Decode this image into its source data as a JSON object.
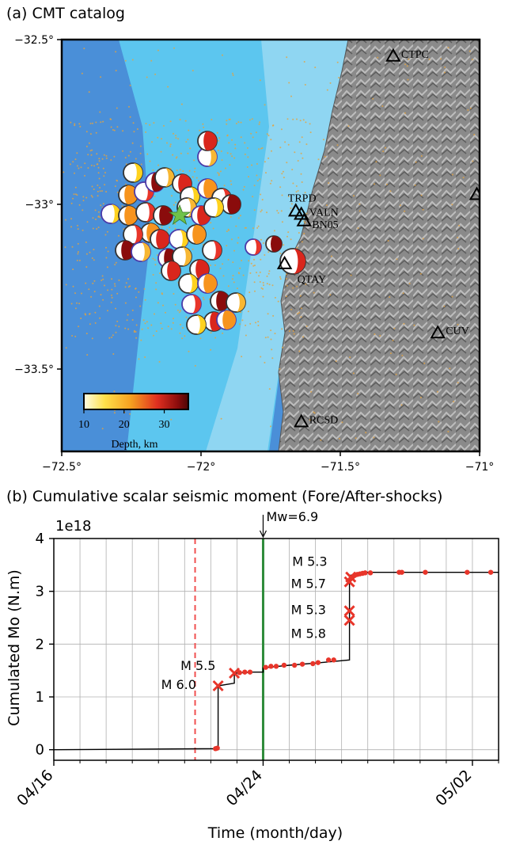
{
  "panel_a": {
    "title": "(a) CMT catalog",
    "map": {
      "lon_range": [
        -72.5,
        -71.0
      ],
      "lat_range": [
        -33.75,
        -32.5
      ],
      "x_ticks": [
        -72.5,
        -72,
        -71.5,
        -71
      ],
      "x_tick_labels": [
        "−72.5°",
        "−72°",
        "−71.5°",
        "−71°"
      ],
      "y_ticks": [
        -32.5,
        -33,
        -33.5
      ],
      "y_tick_labels": [
        "−32.5°",
        "−33°",
        "−33.5°"
      ],
      "colors": {
        "deep_sea": "#4a8fd8",
        "shelf": "#5cc6ef",
        "coast_shelf": "#8fd6f2",
        "land": "#8c8c8c",
        "seismicity": "#e6a23c"
      },
      "epicenter_icon": "green-star-icon"
    },
    "stations": [
      {
        "code": "CTPC",
        "lon": -71.31,
        "lat": -32.55
      },
      {
        "code": "TRPD",
        "lon": -71.66,
        "lat": -33.02
      },
      {
        "code": "VALN",
        "lon": -71.64,
        "lat": -33.03
      },
      {
        "code": "BN05",
        "lon": -71.63,
        "lat": -33.05
      },
      {
        "code": "QTAY",
        "lon": -71.7,
        "lat": -33.18
      },
      {
        "code": "CUV",
        "lon": -71.15,
        "lat": -33.39
      },
      {
        "code": "RCSD",
        "lon": -71.64,
        "lat": -33.66
      },
      {
        "code": "",
        "lon": -71.01,
        "lat": -32.97
      }
    ],
    "colorbar": {
      "label": "Depth, km",
      "tick_labels": [
        "10",
        "20",
        "30"
      ],
      "range": [
        10,
        36
      ]
    }
  },
  "panel_b": {
    "title": "(b) Cumulative scalar seismic moment (Fore/After-shocks)",
    "chart_data": {
      "type": "line",
      "title": "",
      "xlabel": "Time (month/day)",
      "ylabel": "Cumulated Mo (N.m)",
      "y_offset_text": "1e18",
      "x_tick_labels": [
        "04/16",
        "04/24",
        "05/02"
      ],
      "x_ticks_day": [
        0,
        8,
        16
      ],
      "xlim_day": [
        0,
        17
      ],
      "ylim": [
        -0.2,
        4.0
      ],
      "y_ticks": [
        0,
        1,
        2,
        3,
        4
      ],
      "grid": true,
      "mainshock": {
        "label": "Mw=6.9",
        "day": 8.0
      },
      "reference_dashed_day": 5.4,
      "curve": [
        [
          0.0,
          0.0
        ],
        [
          6.28,
          0.02
        ],
        [
          6.28,
          1.21
        ],
        [
          6.9,
          1.26
        ],
        [
          6.9,
          1.45
        ],
        [
          7.6,
          1.47
        ],
        [
          8.0,
          1.47
        ],
        [
          8.0,
          1.55
        ],
        [
          9.0,
          1.6
        ],
        [
          10.0,
          1.64
        ],
        [
          11.3,
          1.7
        ],
        [
          11.3,
          2.45
        ],
        [
          11.3,
          3.3
        ],
        [
          11.9,
          3.36
        ],
        [
          17.0,
          3.36
        ]
      ],
      "small_events": [
        [
          6.18,
          0.02
        ],
        [
          6.25,
          0.03
        ],
        [
          7.1,
          1.46
        ],
        [
          7.3,
          1.47
        ],
        [
          7.5,
          1.47
        ],
        [
          8.1,
          1.56
        ],
        [
          8.3,
          1.58
        ],
        [
          8.5,
          1.58
        ],
        [
          8.8,
          1.6
        ],
        [
          9.2,
          1.6
        ],
        [
          9.5,
          1.62
        ],
        [
          9.9,
          1.63
        ],
        [
          10.1,
          1.65
        ],
        [
          10.5,
          1.7
        ],
        [
          10.7,
          1.7
        ],
        [
          11.4,
          3.26
        ],
        [
          11.5,
          3.3
        ],
        [
          11.6,
          3.32
        ],
        [
          11.7,
          3.33
        ],
        [
          11.8,
          3.34
        ],
        [
          11.9,
          3.35
        ],
        [
          12.1,
          3.35
        ],
        [
          13.2,
          3.36
        ],
        [
          13.3,
          3.36
        ],
        [
          14.2,
          3.36
        ],
        [
          15.8,
          3.36
        ],
        [
          16.7,
          3.36
        ]
      ],
      "labeled_events": [
        {
          "day": 6.28,
          "value": 1.21,
          "label": "M 6.0"
        },
        {
          "day": 6.9,
          "value": 1.45,
          "label": "M 5.5"
        },
        {
          "day": 11.3,
          "value": 2.45,
          "label": "M 5.8"
        },
        {
          "day": 11.3,
          "value": 2.63,
          "label": "M 5.3"
        },
        {
          "day": 11.3,
          "value": 3.18,
          "label": "M 5.7"
        },
        {
          "day": 11.35,
          "value": 3.27,
          "label": "M 5.3"
        }
      ],
      "colors": {
        "curve": "#000000",
        "events": "#e8352a",
        "mainshock_line": "#2e8b3a",
        "dashed_line": "#f05050",
        "grid": "#b0b0b0"
      }
    }
  }
}
